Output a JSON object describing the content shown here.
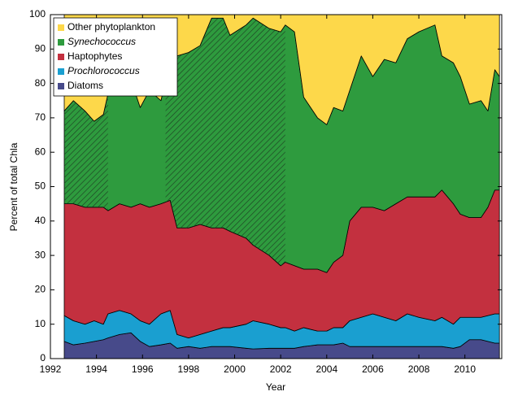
{
  "chart_data": {
    "type": "stacked_area",
    "x_label": "Year",
    "y_label": "Percent of total Chla",
    "xlim": [
      1992,
      2011.6
    ],
    "ylim": [
      0,
      100
    ],
    "xticks": [
      1992,
      1994,
      1996,
      1998,
      2000,
      2002,
      2004,
      2006,
      2008,
      2010
    ],
    "yticks": [
      0,
      10,
      20,
      30,
      40,
      50,
      60,
      70,
      80,
      90,
      100
    ],
    "legend": "upper-left",
    "x": [
      1992.6,
      1993.0,
      1993.5,
      1993.9,
      1994.3,
      1994.5,
      1995.0,
      1995.5,
      1995.9,
      1996.3,
      1996.8,
      1997.2,
      1997.5,
      1998.0,
      1998.5,
      1999.0,
      1999.5,
      1999.8,
      2000.5,
      2000.8,
      2001.5,
      2002.0,
      2002.2,
      2002.6,
      2003.0,
      2003.6,
      2004.0,
      2004.3,
      2004.7,
      2005.0,
      2005.5,
      2006.0,
      2006.5,
      2007.0,
      2007.5,
      2008.0,
      2008.7,
      2009.0,
      2009.5,
      2009.8,
      2010.2,
      2010.7,
      2011.0,
      2011.3,
      2011.5
    ],
    "series": [
      {
        "name": "Diatoms",
        "color": "#474a8a",
        "values": [
          5,
          4,
          4.5,
          5,
          5.5,
          6,
          7,
          7.5,
          5,
          3.5,
          4,
          4.5,
          3,
          3.5,
          3,
          3.5,
          3.5,
          3.5,
          3,
          2.8,
          3,
          3,
          3,
          3,
          3.5,
          4,
          4,
          4,
          4.5,
          3.5,
          3.5,
          3.5,
          3.5,
          3.5,
          3.5,
          3.5,
          3.5,
          3.5,
          3,
          3.5,
          5.5,
          5.5,
          5,
          4.5,
          4.5
        ]
      },
      {
        "name": "Prochlorococcus",
        "color": "#1a9fd0",
        "style": "italic",
        "values": [
          7.5,
          7,
          5.5,
          6,
          4.5,
          7,
          7,
          5.5,
          6,
          6.5,
          9,
          9.5,
          4,
          2.5,
          4,
          4.5,
          5.5,
          5.5,
          7,
          8.2,
          7,
          6,
          6,
          5,
          5.5,
          4,
          4,
          5,
          4.5,
          7.5,
          8.5,
          9.5,
          8.5,
          7.5,
          9.5,
          8.5,
          7.5,
          8.5,
          7,
          8.5,
          6.5,
          6.5,
          7.5,
          8.5,
          8.5
        ]
      },
      {
        "name": "Haptophytes",
        "color": "#c3303f",
        "values": [
          32.5,
          34,
          34,
          33,
          34,
          30,
          31,
          31,
          34,
          34,
          32,
          32,
          31,
          32,
          32,
          30,
          29,
          28,
          25,
          22,
          20,
          18,
          19,
          19,
          17,
          18,
          17,
          19,
          21,
          29,
          32,
          31,
          31,
          34,
          34,
          35,
          36,
          37,
          35,
          30,
          29,
          29,
          31.5,
          36,
          36
        ]
      },
      {
        "name": "Synechococcus",
        "color": "#2e9b3e",
        "style": "italic",
        "hatch_ranges": [
          [
            1992.6,
            1994.5
          ],
          [
            1997.0,
            2002.2
          ]
        ],
        "values": [
          27,
          30,
          28,
          25,
          27,
          34,
          32,
          37,
          28,
          34,
          30,
          41,
          50,
          51,
          52,
          61,
          61,
          57,
          62,
          66,
          66,
          68,
          69,
          68,
          50,
          44,
          43,
          45,
          42,
          38,
          44,
          38,
          44,
          41,
          46,
          48,
          50,
          39,
          41,
          40,
          33,
          34,
          28,
          35,
          33
        ]
      },
      {
        "name": "Other phytoplankton",
        "color": "#fdd84a",
        "values": [
          28,
          25,
          28,
          31,
          29,
          23,
          23,
          19,
          27,
          22,
          25,
          13,
          12,
          11,
          9,
          1,
          1,
          6,
          3,
          1,
          4,
          5,
          3,
          5,
          24,
          30,
          32,
          27,
          28,
          22,
          12,
          18,
          13,
          14,
          7,
          5,
          3,
          12,
          14,
          18,
          26,
          25,
          28,
          16,
          18
        ]
      }
    ]
  }
}
